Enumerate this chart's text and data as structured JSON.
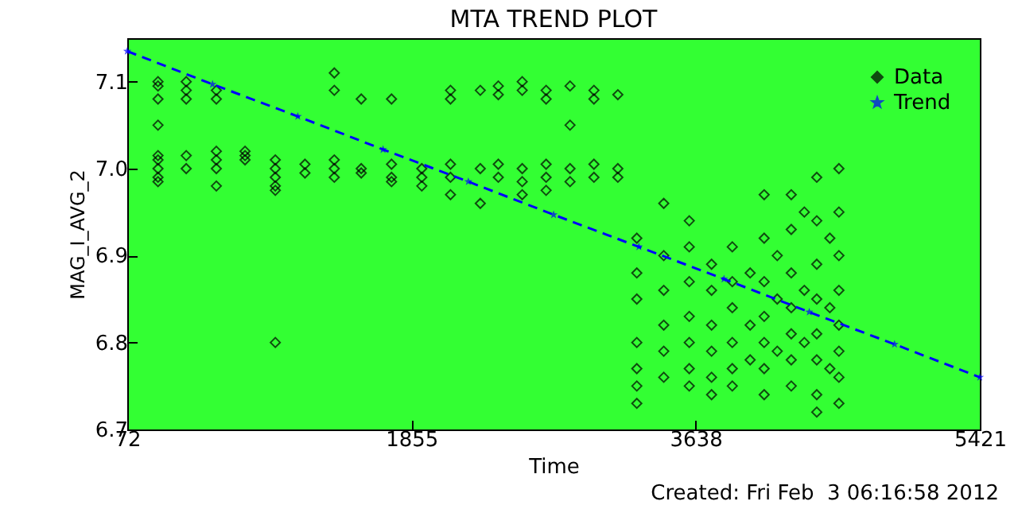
{
  "chart_data": {
    "type": "scatter",
    "title": "MTA TREND PLOT",
    "xlabel": "Time",
    "ylabel": "MAG_I_AVG_2",
    "annotations": [
      "Created: Fri Feb  3 06:16:58 2012"
    ],
    "xlim": [
      72,
      5421
    ],
    "xticks": [
      72,
      1855,
      3638,
      5421
    ],
    "ylim": [
      6.7,
      7.15
    ],
    "yticks": [
      6.7,
      6.8,
      6.9,
      {
        "value": 7,
        "label": "7.0"
      },
      7.1
    ],
    "grid": false,
    "legend": "top right",
    "series": [
      {
        "name": "Data",
        "marker": "diamond",
        "color": "#000000",
        "x": [
          265,
          265,
          265,
          265,
          265,
          265,
          265,
          265,
          265,
          442,
          442,
          442,
          442,
          442,
          631,
          631,
          631,
          631,
          631,
          631,
          811,
          811,
          811,
          1001,
          1001,
          1001,
          1001,
          1001,
          1001,
          1187,
          1187,
          1371,
          1371,
          1371,
          1371,
          1371,
          1540,
          1540,
          1540,
          1730,
          1730,
          1730,
          1730,
          1920,
          1920,
          1920,
          2100,
          2100,
          2100,
          2100,
          2100,
          2287,
          2287,
          2287,
          2400,
          2400,
          2400,
          2400,
          2550,
          2550,
          2550,
          2550,
          2550,
          2700,
          2700,
          2700,
          2700,
          2700,
          2850,
          2850,
          2850,
          2850,
          3000,
          3000,
          3000,
          3000,
          3150,
          3150,
          3150,
          3269,
          3269,
          3269,
          3269,
          3269,
          3269,
          3269,
          3438,
          3438,
          3438,
          3438,
          3438,
          3438,
          3598,
          3598,
          3598,
          3598,
          3598,
          3598,
          3598,
          3738,
          3738,
          3738,
          3738,
          3738,
          3738,
          3868,
          3868,
          3868,
          3868,
          3868,
          3868,
          3980,
          3980,
          3980,
          4068,
          4068,
          4068,
          4068,
          4068,
          4068,
          4068,
          4150,
          4150,
          4150,
          4238,
          4238,
          4238,
          4238,
          4238,
          4238,
          4238,
          4320,
          4320,
          4320,
          4398,
          4398,
          4398,
          4398,
          4398,
          4398,
          4398,
          4398,
          4480,
          4480,
          4480,
          4537,
          4537,
          4537,
          4537,
          4537,
          4537,
          4537,
          4537
        ],
        "values": [
          7.1,
          7.095,
          7.08,
          7.05,
          7.015,
          7.01,
          7.0,
          6.99,
          6.985,
          7.1,
          7.09,
          7.08,
          7.015,
          7.0,
          7.09,
          7.08,
          7.02,
          7.01,
          7.0,
          6.98,
          7.02,
          7.015,
          7.01,
          7.01,
          7.0,
          6.99,
          6.98,
          6.975,
          6.8,
          7.005,
          6.995,
          7.11,
          7.09,
          7.01,
          7.0,
          6.99,
          7.08,
          7.0,
          6.995,
          7.08,
          7.005,
          6.99,
          6.985,
          7.0,
          6.99,
          6.98,
          7.09,
          7.08,
          7.005,
          6.99,
          6.97,
          7.09,
          7.0,
          6.96,
          7.095,
          7.085,
          7.005,
          6.99,
          7.1,
          7.09,
          7.0,
          6.985,
          6.97,
          7.09,
          7.08,
          7.005,
          6.99,
          6.975,
          7.095,
          7.05,
          7.0,
          6.985,
          7.09,
          7.08,
          7.005,
          6.99,
          7.085,
          7.0,
          6.99,
          6.92,
          6.88,
          6.85,
          6.8,
          6.77,
          6.75,
          6.73,
          6.96,
          6.9,
          6.86,
          6.82,
          6.79,
          6.76,
          6.94,
          6.91,
          6.87,
          6.83,
          6.8,
          6.77,
          6.75,
          6.89,
          6.86,
          6.82,
          6.79,
          6.76,
          6.74,
          6.91,
          6.87,
          6.84,
          6.8,
          6.77,
          6.75,
          6.88,
          6.82,
          6.78,
          6.97,
          6.92,
          6.87,
          6.83,
          6.8,
          6.77,
          6.74,
          6.9,
          6.85,
          6.79,
          6.97,
          6.93,
          6.88,
          6.84,
          6.81,
          6.78,
          6.75,
          6.95,
          6.86,
          6.8,
          6.99,
          6.94,
          6.89,
          6.85,
          6.81,
          6.78,
          6.74,
          6.72,
          6.92,
          6.84,
          6.77,
          7.0,
          6.95,
          6.9,
          6.86,
          6.82,
          6.79,
          6.76,
          6.73
        ]
      },
      {
        "name": "Trend",
        "type": "line",
        "marker": "star",
        "line_style": "dashed",
        "color": "#0000ff",
        "x": [
          72,
          607,
          1142,
          1677,
          2212,
          2747,
          3282,
          3816,
          4351,
          4886,
          5421
        ],
        "values": [
          7.135,
          7.097,
          7.06,
          7.022,
          6.985,
          6.947,
          6.91,
          6.873,
          6.835,
          6.798,
          6.76
        ]
      }
    ]
  }
}
